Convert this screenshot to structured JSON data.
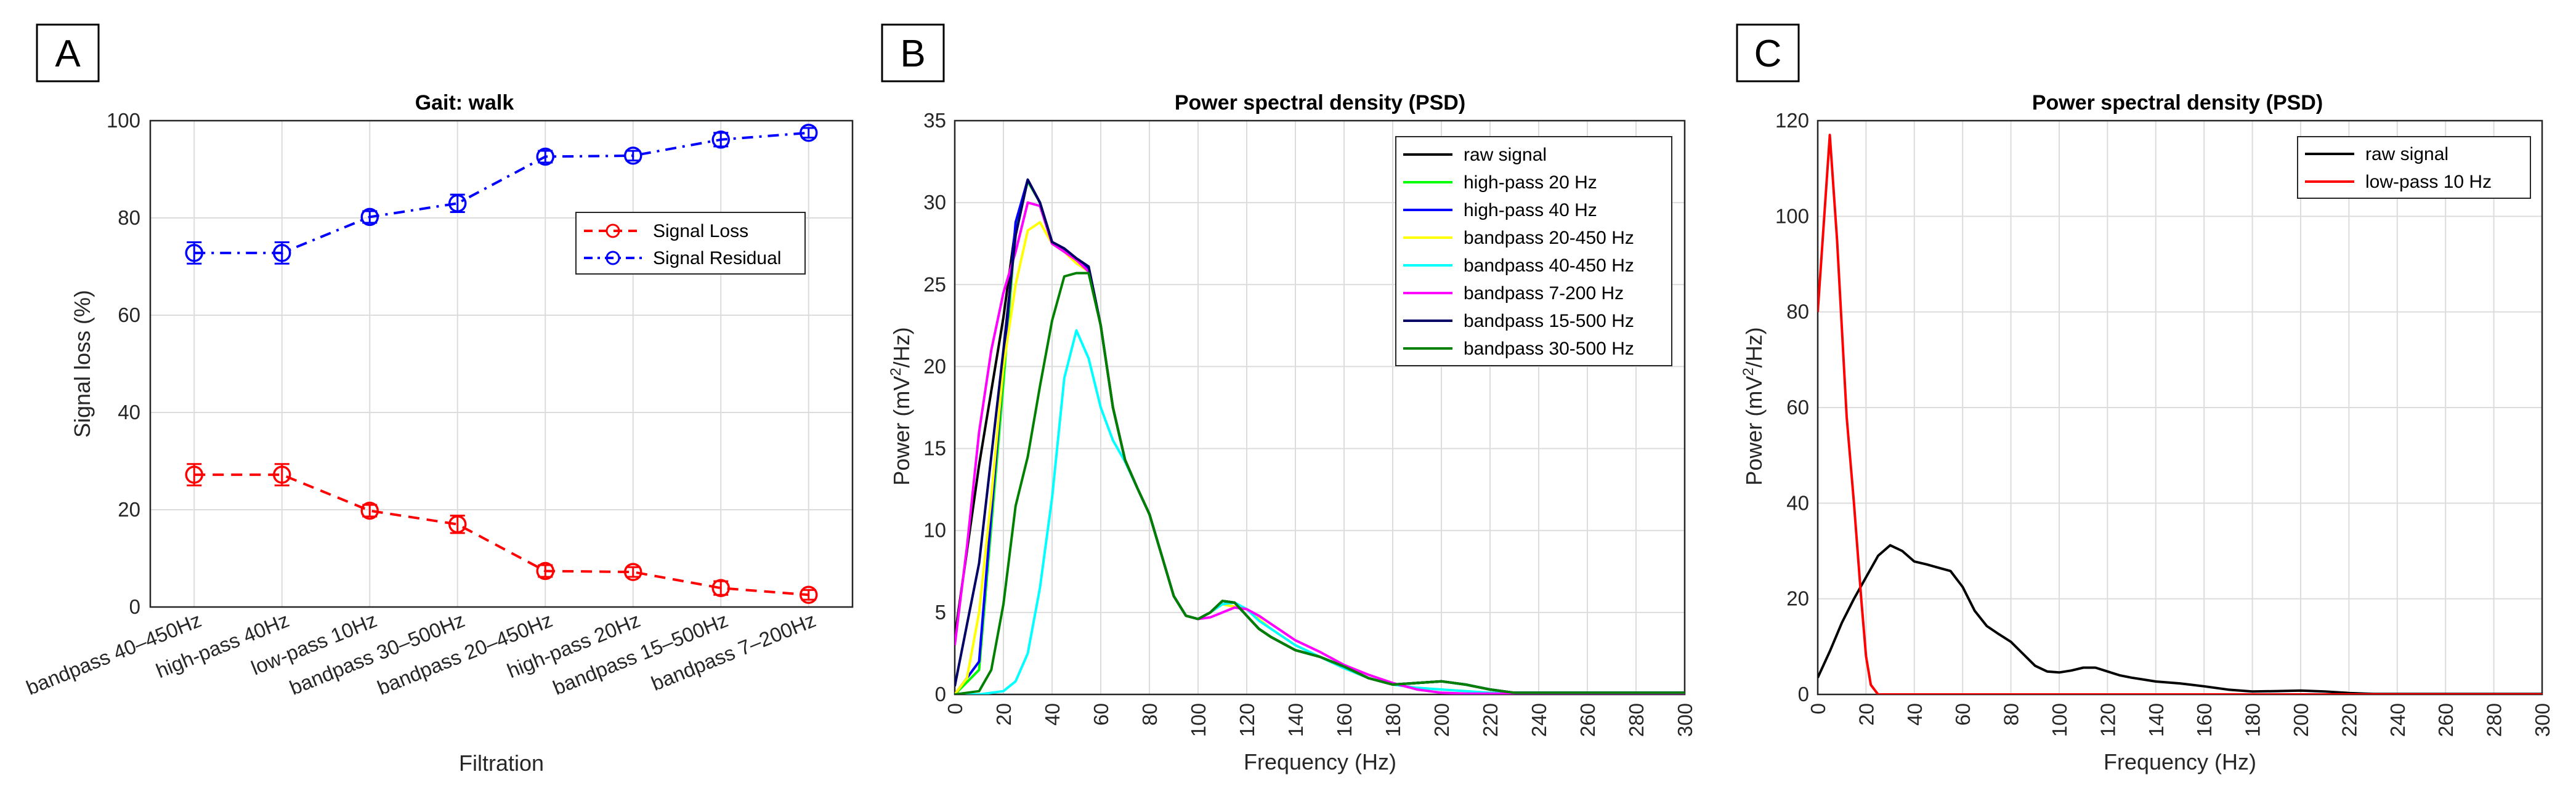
{
  "chart_data": [
    {
      "panel": "A",
      "type": "line",
      "title": "Gait: walk",
      "xlabel": "Filtration",
      "ylabel": "Signal loss (%)",
      "ylim": [
        0,
        100
      ],
      "yticks": [
        0,
        20,
        40,
        60,
        80,
        100
      ],
      "categories": [
        "bandpass 40–450Hz",
        "high-pass 40Hz",
        "low-pass 10Hz",
        "bandpass 30–500Hz",
        "bandpass 20–450Hz",
        "high-pass 20Hz",
        "bandpass 15–500Hz",
        "bandpass 7–200Hz"
      ],
      "legend_position": "upper-right",
      "series": [
        {
          "name": "Signal Loss",
          "color": "#ff0000",
          "values": [
            27.2,
            27.2,
            19.8,
            17.0,
            7.4,
            7.2,
            3.9,
            2.5
          ],
          "errors": [
            2.2,
            2.2,
            1.2,
            1.8,
            1.2,
            1.0,
            1.4,
            1.0
          ]
        },
        {
          "name": "Signal Residual",
          "color": "#0000ff",
          "values": [
            72.8,
            72.8,
            80.2,
            83.0,
            92.6,
            92.8,
            96.1,
            97.5
          ],
          "errors": [
            2.2,
            2.2,
            1.2,
            1.8,
            1.2,
            1.0,
            1.4,
            1.0
          ]
        }
      ]
    },
    {
      "panel": "B",
      "type": "line",
      "title": "Power spectral density (PSD)",
      "xlabel": "Frequency (Hz)",
      "ylabel_prefix": "Power (mV",
      "ylabel_sup": "2",
      "ylabel_suffix": "/Hz)",
      "xlim": [
        0,
        300
      ],
      "ylim": [
        0,
        35
      ],
      "xticks": [
        0,
        20,
        40,
        60,
        80,
        100,
        120,
        140,
        160,
        180,
        200,
        220,
        240,
        260,
        280,
        300
      ],
      "yticks": [
        0,
        5,
        10,
        15,
        20,
        25,
        30,
        35
      ],
      "legend_position": "upper-right",
      "series": [
        {
          "name": "raw signal",
          "color": "#000000",
          "x": [
            0,
            10,
            20,
            25,
            30,
            35,
            40,
            45,
            50,
            55,
            60,
            65,
            70,
            75,
            80,
            85,
            90,
            95,
            100,
            105,
            110,
            115,
            120,
            125,
            130,
            135,
            140,
            150,
            160,
            170,
            180,
            190,
            200,
            210,
            220,
            230,
            240,
            260,
            280,
            300
          ],
          "y": [
            3.5,
            14,
            23,
            28.5,
            31.4,
            30,
            27.6,
            27.2,
            26.6,
            26.1,
            22.5,
            17.5,
            14.3,
            12.6,
            11,
            8.5,
            6,
            4.8,
            4.6,
            5,
            5.7,
            5.6,
            4.8,
            4,
            3.5,
            3.1,
            2.7,
            2.3,
            1.7,
            1,
            0.6,
            0.7,
            0.8,
            0.6,
            0.3,
            0.1,
            0.1,
            0.1,
            0.1,
            0.1
          ]
        },
        {
          "name": "high-pass 20 Hz",
          "color": "#00ff00",
          "x": [
            0,
            10,
            20,
            25,
            30,
            35,
            40,
            45,
            50,
            55,
            60,
            65,
            70,
            75,
            80,
            85,
            90,
            95,
            100,
            105,
            110,
            115,
            120,
            125,
            130,
            135,
            140,
            150,
            160,
            170,
            180,
            190,
            200,
            210,
            220,
            230,
            240,
            260,
            280,
            300
          ],
          "y": [
            0,
            1.5,
            19,
            28.5,
            31.3,
            30,
            27.5,
            27.1,
            26.5,
            26,
            22.5,
            17.5,
            14.3,
            12.6,
            11,
            8.5,
            6,
            4.8,
            4.6,
            5,
            5.7,
            5.6,
            4.8,
            4,
            3.5,
            3.1,
            2.7,
            2.3,
            1.7,
            1,
            0.6,
            0.7,
            0.8,
            0.6,
            0.3,
            0.1,
            0.1,
            0.1,
            0.1,
            0.1
          ]
        },
        {
          "name": "high-pass 40 Hz",
          "color": "#0000ff",
          "x": [
            0,
            10,
            20,
            25,
            30,
            35,
            40,
            45,
            50,
            55,
            60,
            65,
            70,
            75,
            80,
            85,
            90,
            95,
            100,
            105,
            110,
            115,
            120,
            125,
            130,
            135,
            140,
            150,
            160,
            170,
            180,
            190,
            200,
            210,
            220,
            230,
            240,
            260,
            280,
            300
          ],
          "y": [
            0,
            2,
            20,
            28.8,
            31.4,
            30,
            27.6,
            27.1,
            26.5,
            26,
            22.5,
            17.5,
            14.3,
            12.6,
            11,
            8.5,
            6,
            4.8,
            4.6,
            5,
            5.7,
            5.6,
            4.8,
            4,
            3.5,
            3.1,
            2.7,
            2.3,
            1.7,
            1,
            0.6,
            0.7,
            0.8,
            0.6,
            0.3,
            0.1,
            0.1,
            0.1,
            0.1,
            0.1
          ]
        },
        {
          "name": "bandpass 20-450 Hz",
          "color": "#ffff00",
          "x": [
            0,
            5,
            10,
            15,
            20,
            25,
            30,
            35,
            40,
            45,
            50,
            55,
            60,
            65,
            70,
            75,
            80,
            85,
            90,
            95,
            100,
            105,
            110,
            120,
            130,
            140,
            150,
            160,
            170,
            180,
            190,
            200,
            220,
            240,
            260,
            280,
            300
          ],
          "y": [
            0,
            1,
            5,
            12,
            20,
            25,
            28.3,
            28.8,
            27.5,
            27,
            26.3,
            25.8,
            22.5,
            17.5,
            14.3,
            12.6,
            11,
            8.5,
            6,
            4.8,
            4.6,
            5,
            5.5,
            5.2,
            4,
            3,
            2.3,
            1.6,
            1,
            0.6,
            0.4,
            0.3,
            0.1,
            0.05,
            0.05,
            0.05,
            0.05
          ]
        },
        {
          "name": "bandpass 40-450 Hz",
          "color": "#00ffff",
          "x": [
            0,
            10,
            20,
            25,
            30,
            35,
            40,
            45,
            50,
            55,
            60,
            65,
            70,
            75,
            80,
            85,
            90,
            95,
            100,
            105,
            110,
            115,
            120,
            125,
            130,
            140,
            150,
            160,
            170,
            180,
            190,
            200,
            220,
            240,
            260,
            280,
            300
          ],
          "y": [
            0,
            0,
            0.2,
            0.8,
            2.5,
            6.5,
            12,
            19.3,
            22.2,
            20.5,
            17.5,
            15.5,
            14.2,
            12.6,
            11,
            8.5,
            6,
            4.8,
            4.6,
            5,
            5.5,
            5.6,
            5.2,
            4.5,
            4,
            3,
            2.3,
            1.6,
            1,
            0.6,
            0.4,
            0.3,
            0.1,
            0.05,
            0.05,
            0.05,
            0.05
          ]
        },
        {
          "name": "bandpass 7-200 Hz",
          "color": "#ff00ff",
          "x": [
            0,
            5,
            10,
            15,
            20,
            25,
            30,
            35,
            40,
            45,
            50,
            55,
            60,
            65,
            70,
            75,
            80,
            85,
            90,
            95,
            100,
            105,
            110,
            115,
            120,
            125,
            130,
            140,
            150,
            160,
            170,
            180,
            190,
            200,
            210,
            220,
            240,
            260,
            280,
            300
          ],
          "y": [
            3,
            9,
            16,
            21,
            24.5,
            27,
            30,
            29.8,
            27.5,
            27,
            26.5,
            25.8,
            22.5,
            17.5,
            14.3,
            12.6,
            11,
            8.5,
            6,
            4.8,
            4.6,
            4.7,
            5,
            5.3,
            5.2,
            4.8,
            4.3,
            3.3,
            2.6,
            1.8,
            1.2,
            0.7,
            0.3,
            0.1,
            0.05,
            0.05,
            0.05,
            0.05,
            0.05,
            0.05
          ]
        },
        {
          "name": "bandpass 15-500 Hz",
          "color": "#000066",
          "x": [
            0,
            10,
            20,
            25,
            30,
            35,
            40,
            45,
            50,
            55,
            60,
            65,
            70,
            75,
            80,
            85,
            90,
            95,
            100,
            105,
            110,
            115,
            120,
            125,
            130,
            135,
            140,
            150,
            160,
            170,
            180,
            190,
            200,
            210,
            220,
            230,
            240,
            260,
            280,
            300
          ],
          "y": [
            0.5,
            8,
            21,
            28,
            31.4,
            30,
            27.6,
            27.2,
            26.6,
            26.1,
            22.5,
            17.5,
            14.3,
            12.6,
            11,
            8.5,
            6,
            4.8,
            4.6,
            5,
            5.7,
            5.6,
            4.8,
            4,
            3.5,
            3.1,
            2.7,
            2.3,
            1.7,
            1,
            0.6,
            0.7,
            0.8,
            0.6,
            0.3,
            0.1,
            0.1,
            0.1,
            0.1,
            0.1
          ]
        },
        {
          "name": "bandpass 30-500 Hz",
          "color": "#008000",
          "x": [
            0,
            10,
            15,
            20,
            25,
            30,
            35,
            40,
            45,
            50,
            55,
            60,
            65,
            70,
            75,
            80,
            85,
            90,
            95,
            100,
            105,
            110,
            115,
            120,
            125,
            130,
            135,
            140,
            150,
            160,
            170,
            180,
            190,
            200,
            210,
            220,
            230,
            240,
            260,
            280,
            300
          ],
          "y": [
            0,
            0.2,
            1.5,
            5.5,
            11.5,
            14.5,
            18.8,
            22.8,
            25.5,
            25.7,
            25.7,
            22.5,
            17.5,
            14.3,
            12.6,
            11,
            8.5,
            6,
            4.8,
            4.6,
            5,
            5.7,
            5.6,
            4.8,
            4,
            3.5,
            3.1,
            2.7,
            2.3,
            1.7,
            1,
            0.6,
            0.7,
            0.8,
            0.6,
            0.3,
            0.1,
            0.1,
            0.1,
            0.1,
            0.1
          ]
        }
      ]
    },
    {
      "panel": "C",
      "type": "line",
      "title": "Power spectral density (PSD)",
      "xlabel": "Frequency (Hz)",
      "ylabel_prefix": "Power (mV",
      "ylabel_sup": "2",
      "ylabel_suffix": "/Hz)",
      "xlim": [
        0,
        300
      ],
      "ylim": [
        0,
        120
      ],
      "xticks": [
        0,
        20,
        40,
        60,
        80,
        100,
        120,
        140,
        160,
        180,
        200,
        220,
        240,
        260,
        280,
        300
      ],
      "yticks": [
        0,
        20,
        40,
        60,
        80,
        100,
        120
      ],
      "legend_position": "upper-right",
      "series": [
        {
          "name": "raw signal",
          "color": "#000000",
          "x": [
            0,
            5,
            10,
            15,
            20,
            25,
            30,
            35,
            40,
            45,
            50,
            55,
            60,
            65,
            70,
            75,
            80,
            85,
            90,
            95,
            100,
            105,
            110,
            115,
            120,
            125,
            130,
            135,
            140,
            150,
            160,
            170,
            180,
            190,
            200,
            210,
            220,
            230,
            240,
            260,
            280,
            300
          ],
          "y": [
            3.5,
            9,
            15,
            20,
            24.5,
            29,
            31.2,
            30,
            27.8,
            27.2,
            26.5,
            25.8,
            22.5,
            17.5,
            14.3,
            12.6,
            11,
            8.5,
            6,
            4.8,
            4.6,
            5,
            5.6,
            5.6,
            4.8,
            4,
            3.5,
            3.1,
            2.7,
            2.3,
            1.7,
            1,
            0.6,
            0.7,
            0.8,
            0.6,
            0.3,
            0.1,
            0.1,
            0.1,
            0.1,
            0.1
          ]
        },
        {
          "name": "low-pass 10 Hz",
          "color": "#ff0000",
          "x": [
            0,
            5,
            8,
            12,
            15,
            18,
            20,
            22,
            25,
            30,
            60,
            100,
            150,
            200,
            250,
            300
          ],
          "y": [
            80,
            117,
            95,
            58,
            40,
            20,
            8,
            2,
            0,
            0,
            0,
            0,
            0,
            0,
            0,
            0
          ]
        }
      ]
    }
  ]
}
